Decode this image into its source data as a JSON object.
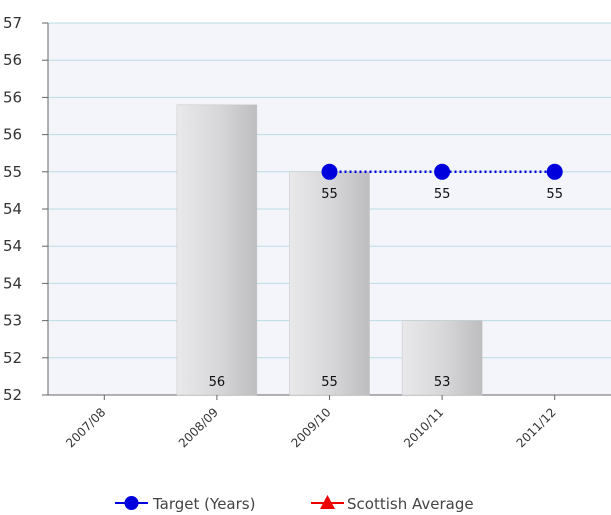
{
  "chart_data": {
    "type": "bar",
    "categories": [
      "2007/08",
      "2008/09",
      "2009/10",
      "2010/11",
      "2011/12"
    ],
    "y_ticks": [
      "57",
      "56",
      "56",
      "56",
      "55",
      "54",
      "54",
      "54",
      "53",
      "52",
      "52"
    ],
    "ylim": [
      52,
      57
    ],
    "grid": true,
    "legend_placement": "bottom",
    "series": [
      {
        "type": "bar",
        "values": [
          null,
          55.9,
          55.0,
          53.0,
          null
        ],
        "labels": [
          "",
          "56",
          "55",
          "53",
          ""
        ],
        "color": "#d6d6d8"
      },
      {
        "type": "line",
        "name": "Target (Years)",
        "values": [
          null,
          null,
          55.0,
          55.0,
          55.0
        ],
        "labels": [
          "",
          "",
          "55",
          "55",
          "55"
        ],
        "color": "#0000dd",
        "style": "dotted"
      },
      {
        "type": "line",
        "name": "Scottish Average",
        "values": [
          null,
          null,
          null,
          null,
          null
        ],
        "labels": [
          "",
          "",
          "",
          "",
          ""
        ],
        "color": "#ee0000",
        "marker": "triangle"
      }
    ],
    "colors": {
      "plot_background": "#f3f5fb",
      "gridline": "#b9dde2",
      "axis": "#666666"
    }
  }
}
